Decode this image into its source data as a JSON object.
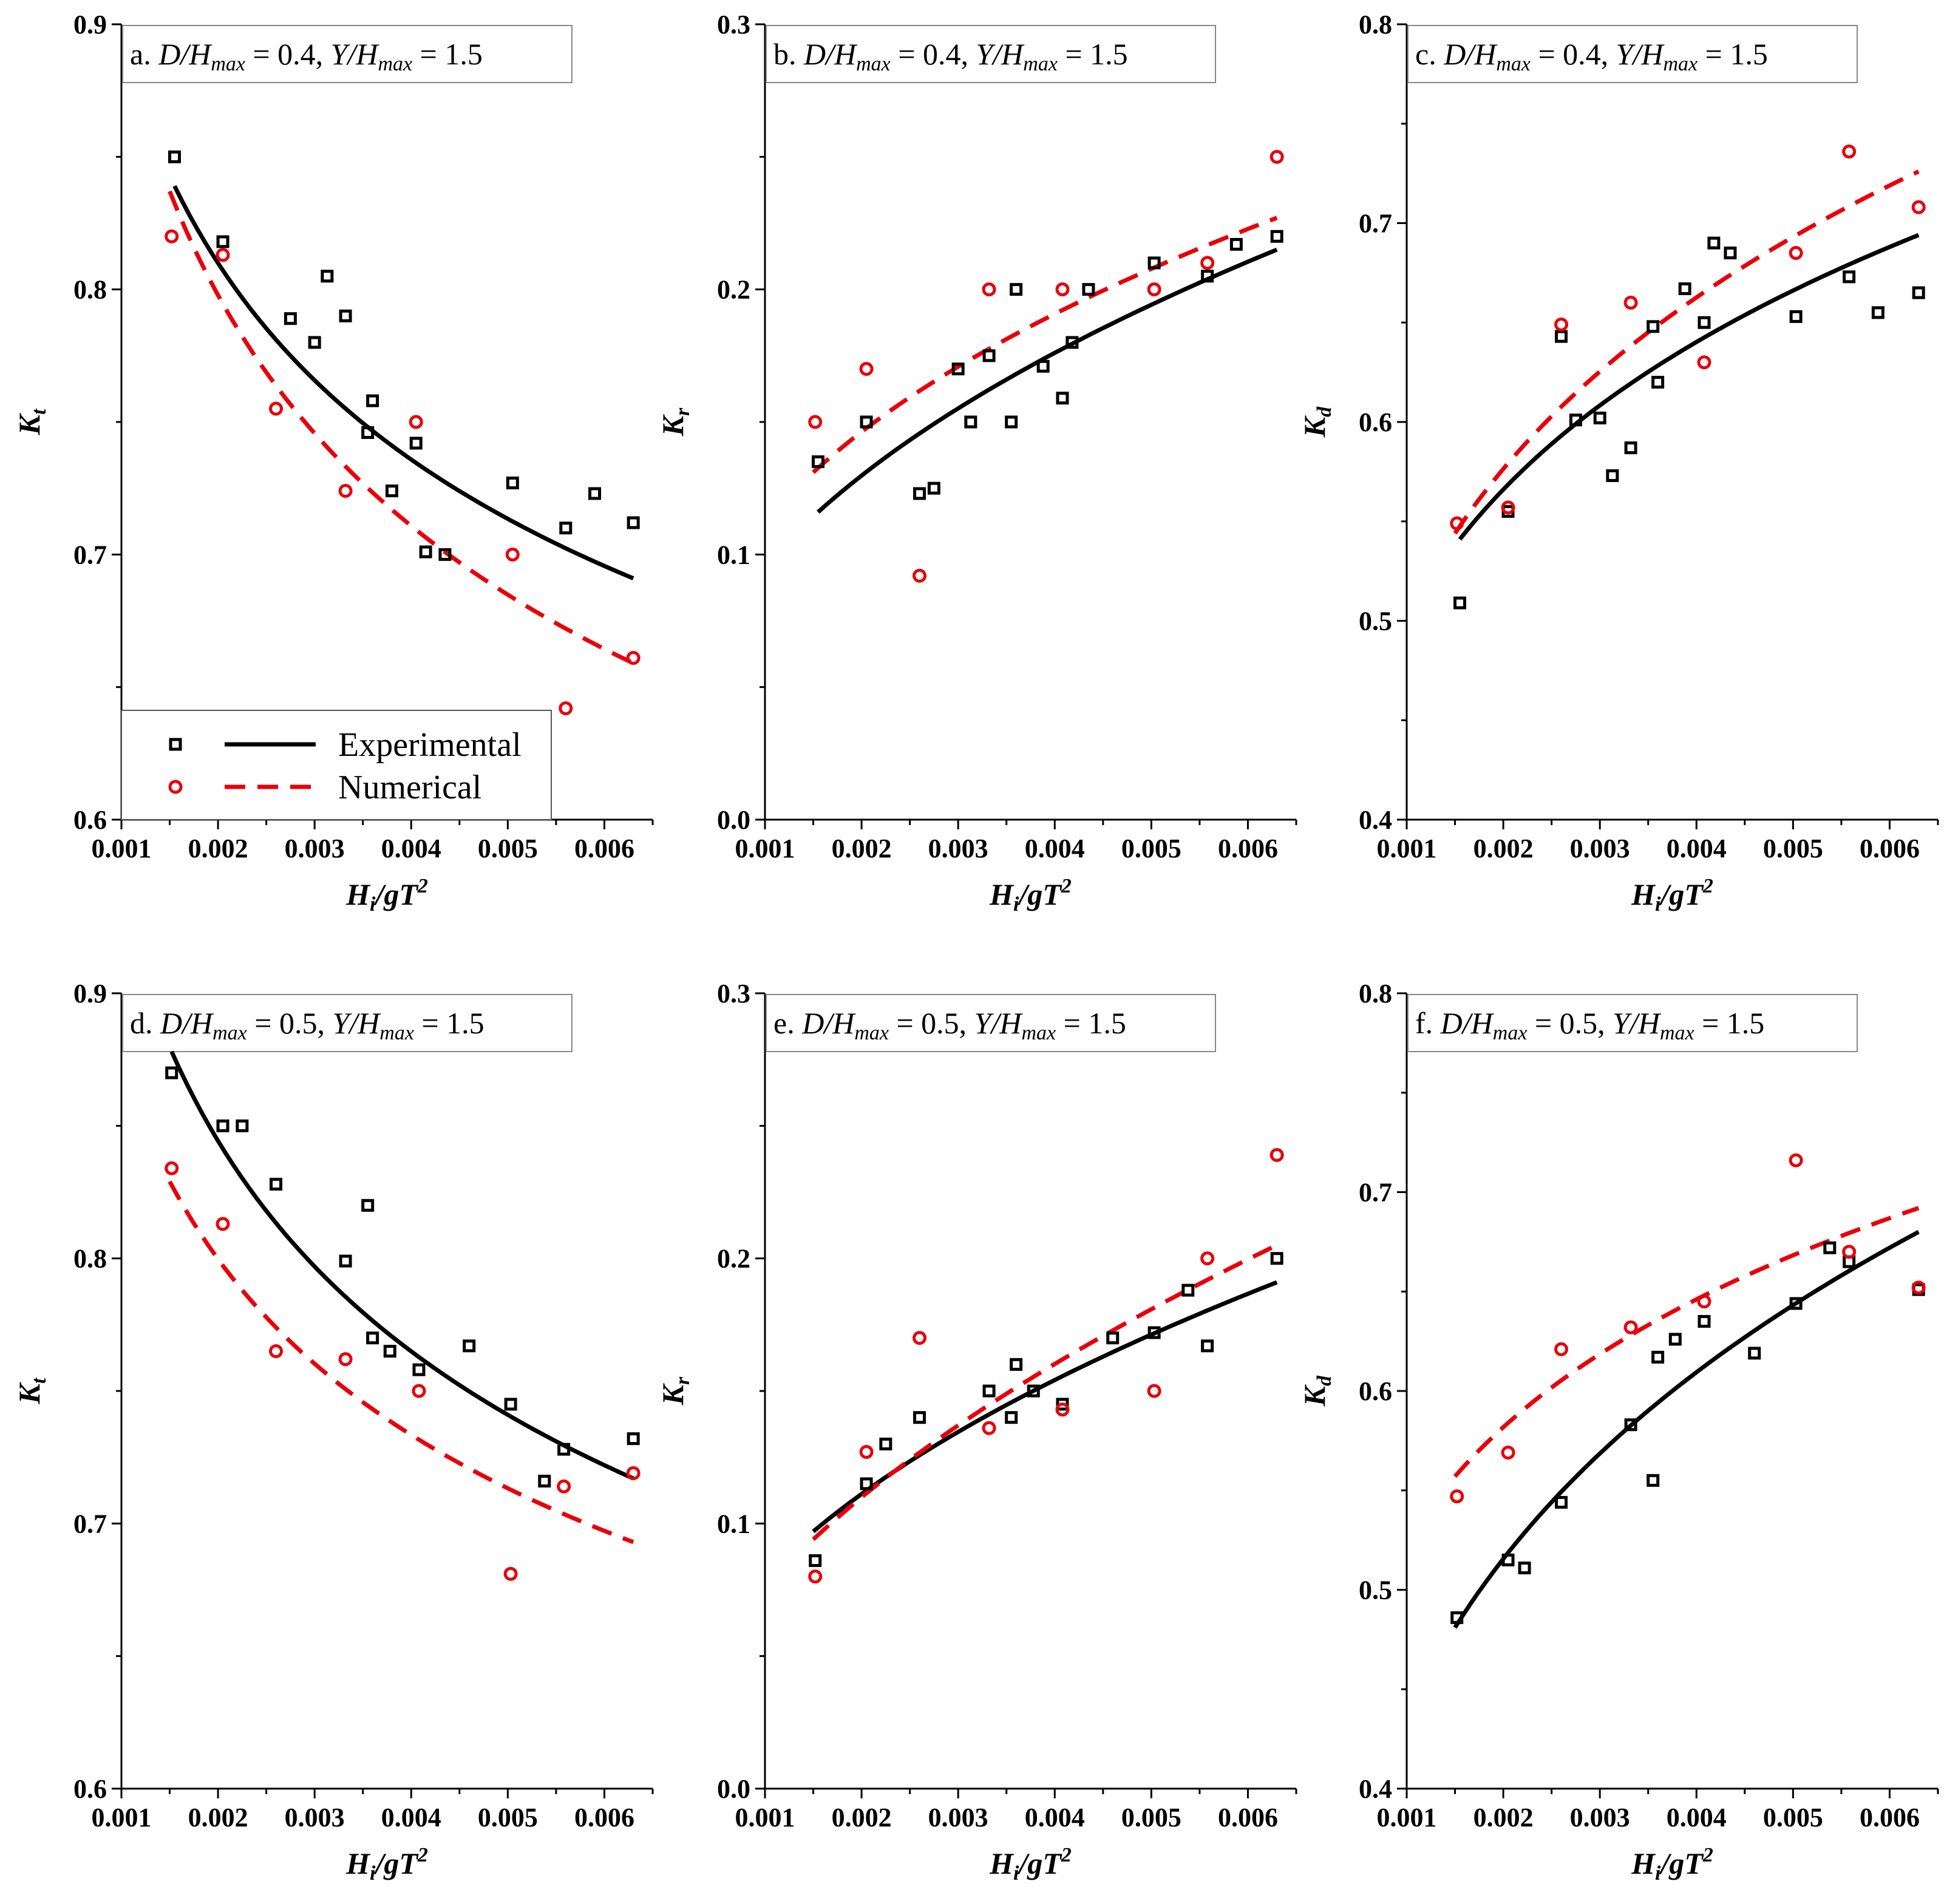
{
  "legend": {
    "experimental": "Experimental",
    "numerical": "Numerical"
  },
  "colors": {
    "experimental": "#000000",
    "numerical": "#e8000b"
  },
  "chart_data": [
    {
      "id": "a",
      "type": "scatter",
      "title": {
        "prefix": "a.",
        "d_ratio": "0.4",
        "y_ratio": "1.5"
      },
      "xlabel": {
        "main": "H",
        "sub": "i",
        "rest": "/gT",
        "sup": "2"
      },
      "ylabel": {
        "main": "K",
        "sub": "t"
      },
      "xlim": [
        0.001,
        0.0065
      ],
      "ylim": [
        0.6,
        0.9
      ],
      "xticks": [
        "0.001",
        "0.002",
        "0.003",
        "0.004",
        "0.005",
        "0.006"
      ],
      "yticks": [
        "0.6",
        "0.7",
        "0.8",
        "0.9"
      ],
      "yticks_values": [
        0.6,
        0.7,
        0.8,
        0.9
      ],
      "yminor_step": 0.05,
      "show_legend": true,
      "series": [
        {
          "name": "Experimental",
          "marker": "square",
          "x": [
            0.00155,
            0.00205,
            0.00275,
            0.003,
            0.00313,
            0.00332,
            0.00355,
            0.0036,
            0.0038,
            0.00405,
            0.00415,
            0.00435,
            0.00505,
            0.0056,
            0.0059,
            0.0063
          ],
          "y": [
            0.85,
            0.818,
            0.789,
            0.78,
            0.805,
            0.79,
            0.746,
            0.758,
            0.724,
            0.742,
            0.701,
            0.7,
            0.727,
            0.71,
            0.723,
            0.712
          ]
        },
        {
          "name": "Numerical",
          "marker": "circle",
          "x": [
            0.00152,
            0.00205,
            0.0026,
            0.00332,
            0.00405,
            0.00505,
            0.0056,
            0.0063
          ],
          "y": [
            0.82,
            0.813,
            0.755,
            0.724,
            0.75,
            0.7,
            0.642,
            0.661
          ]
        }
      ],
      "fits": [
        {
          "name": "Experimental",
          "style": "solid",
          "x": [
            0.00155,
            0.0063
          ],
          "y": [
            0.839,
            0.691
          ]
        },
        {
          "name": "Numerical",
          "style": "dashed",
          "x": [
            0.0015,
            0.0063
          ],
          "y": [
            0.837,
            0.659
          ]
        }
      ]
    },
    {
      "id": "b",
      "type": "scatter",
      "title": {
        "prefix": "b.",
        "d_ratio": "0.4",
        "y_ratio": "1.5"
      },
      "xlabel": {
        "main": "H",
        "sub": "i",
        "rest": "/gT",
        "sup": "2"
      },
      "ylabel": {
        "main": "K",
        "sub": "r"
      },
      "xlim": [
        0.001,
        0.0065
      ],
      "ylim": [
        0.0,
        0.3
      ],
      "xticks": [
        "0.001",
        "0.002",
        "0.003",
        "0.004",
        "0.005",
        "0.006"
      ],
      "yticks": [
        "0.0",
        "0.1",
        "0.2",
        "0.3"
      ],
      "yticks_values": [
        0.0,
        0.1,
        0.2,
        0.3
      ],
      "yminor_step": 0.05,
      "show_legend": false,
      "series": [
        {
          "name": "Experimental",
          "marker": "square",
          "x": [
            0.00155,
            0.00205,
            0.0026,
            0.00275,
            0.003,
            0.00313,
            0.00332,
            0.00355,
            0.0036,
            0.00388,
            0.00408,
            0.00418,
            0.00435,
            0.00503,
            0.00558,
            0.00588,
            0.0063
          ],
          "y": [
            0.135,
            0.15,
            0.123,
            0.125,
            0.17,
            0.15,
            0.175,
            0.15,
            0.2,
            0.171,
            0.159,
            0.18,
            0.2,
            0.21,
            0.205,
            0.217,
            0.22
          ]
        },
        {
          "name": "Numerical",
          "marker": "circle",
          "x": [
            0.00152,
            0.00205,
            0.0026,
            0.00332,
            0.00408,
            0.00503,
            0.00558,
            0.0063
          ],
          "y": [
            0.15,
            0.17,
            0.092,
            0.2,
            0.2,
            0.2,
            0.21,
            0.25
          ]
        }
      ],
      "fits": [
        {
          "name": "Experimental",
          "style": "solid",
          "x": [
            0.00155,
            0.0063
          ],
          "y": [
            0.116,
            0.215
          ]
        },
        {
          "name": "Numerical",
          "style": "dashed",
          "x": [
            0.0015,
            0.0063
          ],
          "y": [
            0.131,
            0.227
          ]
        }
      ]
    },
    {
      "id": "c",
      "type": "scatter",
      "title": {
        "prefix": "c.",
        "d_ratio": "0.4",
        "y_ratio": "1.5"
      },
      "xlabel": {
        "main": "H",
        "sub": "i",
        "rest": "/gT",
        "sup": "2"
      },
      "ylabel": {
        "main": "K",
        "sub": "d"
      },
      "xlim": [
        0.001,
        0.0065
      ],
      "ylim": [
        0.4,
        0.8
      ],
      "xticks": [
        "0.001",
        "0.002",
        "0.003",
        "0.004",
        "0.005",
        "0.006"
      ],
      "yticks": [
        "0.4",
        "0.5",
        "0.6",
        "0.7",
        "0.8"
      ],
      "yticks_values": [
        0.4,
        0.5,
        0.6,
        0.7,
        0.8
      ],
      "yminor_step": 0.05,
      "show_legend": false,
      "series": [
        {
          "name": "Experimental",
          "marker": "square",
          "x": [
            0.00155,
            0.00205,
            0.0026,
            0.00275,
            0.003,
            0.00313,
            0.00332,
            0.00355,
            0.0036,
            0.00388,
            0.00408,
            0.00418,
            0.00435,
            0.00503,
            0.00558,
            0.00588,
            0.0063
          ],
          "y": [
            0.509,
            0.555,
            0.643,
            0.601,
            0.602,
            0.573,
            0.587,
            0.648,
            0.62,
            0.667,
            0.65,
            0.69,
            0.685,
            0.653,
            0.673,
            0.655,
            0.665
          ]
        },
        {
          "name": "Numerical",
          "marker": "circle",
          "x": [
            0.00152,
            0.00205,
            0.0026,
            0.00332,
            0.00408,
            0.00503,
            0.00558,
            0.0063
          ],
          "y": [
            0.549,
            0.557,
            0.649,
            0.66,
            0.63,
            0.685,
            0.736,
            0.708
          ]
        }
      ],
      "fits": [
        {
          "name": "Experimental",
          "style": "solid",
          "x": [
            0.00155,
            0.0063
          ],
          "y": [
            0.541,
            0.694
          ]
        },
        {
          "name": "Numerical",
          "style": "dashed",
          "x": [
            0.0015,
            0.0063
          ],
          "y": [
            0.544,
            0.726
          ]
        }
      ]
    },
    {
      "id": "d",
      "type": "scatter",
      "title": {
        "prefix": "d.",
        "d_ratio": "0.5",
        "y_ratio": "1.5"
      },
      "xlabel": {
        "main": "H",
        "sub": "i",
        "rest": "/gT",
        "sup": "2"
      },
      "ylabel": {
        "main": "K",
        "sub": "t"
      },
      "xlim": [
        0.001,
        0.0065
      ],
      "ylim": [
        0.6,
        0.9
      ],
      "xticks": [
        "0.001",
        "0.002",
        "0.003",
        "0.004",
        "0.005",
        "0.006"
      ],
      "yticks": [
        "0.6",
        "0.7",
        "0.8",
        "0.9"
      ],
      "yticks_values": [
        0.6,
        0.7,
        0.8,
        0.9
      ],
      "yminor_step": 0.05,
      "show_legend": false,
      "series": [
        {
          "name": "Experimental",
          "marker": "square",
          "x": [
            0.00152,
            0.00205,
            0.00225,
            0.0026,
            0.00332,
            0.00355,
            0.0036,
            0.00378,
            0.00408,
            0.0046,
            0.00503,
            0.00538,
            0.00558,
            0.0063
          ],
          "y": [
            0.87,
            0.85,
            0.85,
            0.828,
            0.799,
            0.82,
            0.77,
            0.765,
            0.758,
            0.767,
            0.745,
            0.716,
            0.728,
            0.732
          ]
        },
        {
          "name": "Numerical",
          "marker": "circle",
          "x": [
            0.00152,
            0.00205,
            0.0026,
            0.00332,
            0.00408,
            0.00503,
            0.00558,
            0.0063
          ],
          "y": [
            0.834,
            0.813,
            0.765,
            0.762,
            0.75,
            0.681,
            0.714,
            0.719
          ]
        }
      ],
      "fits": [
        {
          "name": "Experimental",
          "style": "solid",
          "x": [
            0.00152,
            0.0063
          ],
          "y": [
            0.878,
            0.717
          ]
        },
        {
          "name": "Numerical",
          "style": "dashed",
          "x": [
            0.0015,
            0.0063
          ],
          "y": [
            0.829,
            0.693
          ]
        }
      ]
    },
    {
      "id": "e",
      "type": "scatter",
      "title": {
        "prefix": "e.",
        "d_ratio": "0.5",
        "y_ratio": "1.5"
      },
      "xlabel": {
        "main": "H",
        "sub": "i",
        "rest": "/gT",
        "sup": "2"
      },
      "ylabel": {
        "main": "K",
        "sub": "r"
      },
      "xlim": [
        0.001,
        0.0065
      ],
      "ylim": [
        0.0,
        0.3
      ],
      "xticks": [
        "0.001",
        "0.002",
        "0.003",
        "0.004",
        "0.005",
        "0.006"
      ],
      "yticks": [
        "0.0",
        "0.1",
        "0.2",
        "0.3"
      ],
      "yticks_values": [
        0.0,
        0.1,
        0.2,
        0.3
      ],
      "yminor_step": 0.05,
      "show_legend": false,
      "series": [
        {
          "name": "Experimental",
          "marker": "square",
          "x": [
            0.00152,
            0.00205,
            0.00225,
            0.0026,
            0.00332,
            0.00355,
            0.0036,
            0.00378,
            0.00408,
            0.0046,
            0.00503,
            0.00538,
            0.00558,
            0.0063
          ],
          "y": [
            0.086,
            0.115,
            0.13,
            0.14,
            0.15,
            0.14,
            0.16,
            0.15,
            0.145,
            0.17,
            0.172,
            0.188,
            0.167,
            0.2
          ]
        },
        {
          "name": "Numerical",
          "marker": "circle",
          "x": [
            0.00152,
            0.00205,
            0.0026,
            0.00332,
            0.00408,
            0.00503,
            0.00558,
            0.0063
          ],
          "y": [
            0.08,
            0.127,
            0.17,
            0.136,
            0.143,
            0.15,
            0.2,
            0.239
          ]
        }
      ],
      "fits": [
        {
          "name": "Experimental",
          "style": "solid",
          "x": [
            0.0015,
            0.0063
          ],
          "y": [
            0.097,
            0.191
          ]
        },
        {
          "name": "Numerical",
          "style": "dashed",
          "x": [
            0.0015,
            0.0063
          ],
          "y": [
            0.094,
            0.205
          ]
        }
      ]
    },
    {
      "id": "f",
      "type": "scatter",
      "title": {
        "prefix": "f.",
        "d_ratio": "0.5",
        "y_ratio": "1.5"
      },
      "xlabel": {
        "main": "H",
        "sub": "i",
        "rest": "/gT",
        "sup": "2"
      },
      "ylabel": {
        "main": "K",
        "sub": "d"
      },
      "xlim": [
        0.001,
        0.0065
      ],
      "ylim": [
        0.4,
        0.8
      ],
      "xticks": [
        "0.001",
        "0.002",
        "0.003",
        "0.004",
        "0.005",
        "0.006"
      ],
      "yticks": [
        "0.4",
        "0.5",
        "0.6",
        "0.7",
        "0.8"
      ],
      "yticks_values": [
        0.4,
        0.5,
        0.6,
        0.7,
        0.8
      ],
      "yminor_step": 0.05,
      "show_legend": false,
      "series": [
        {
          "name": "Experimental",
          "marker": "square",
          "x": [
            0.00152,
            0.00205,
            0.00222,
            0.0026,
            0.00332,
            0.00355,
            0.0036,
            0.00378,
            0.00408,
            0.0046,
            0.00503,
            0.00538,
            0.00558,
            0.0063
          ],
          "y": [
            0.486,
            0.515,
            0.511,
            0.544,
            0.583,
            0.555,
            0.617,
            0.626,
            0.635,
            0.619,
            0.644,
            0.672,
            0.665,
            0.651
          ]
        },
        {
          "name": "Numerical",
          "marker": "circle",
          "x": [
            0.00152,
            0.00205,
            0.0026,
            0.00332,
            0.00408,
            0.00503,
            0.00558,
            0.0063
          ],
          "y": [
            0.547,
            0.569,
            0.621,
            0.632,
            0.645,
            0.716,
            0.67,
            0.652
          ]
        }
      ],
      "fits": [
        {
          "name": "Experimental",
          "style": "solid",
          "x": [
            0.0015,
            0.0063
          ],
          "y": [
            0.481,
            0.68
          ]
        },
        {
          "name": "Numerical",
          "style": "dashed",
          "x": [
            0.0015,
            0.0063
          ],
          "y": [
            0.557,
            0.692
          ]
        }
      ]
    }
  ]
}
